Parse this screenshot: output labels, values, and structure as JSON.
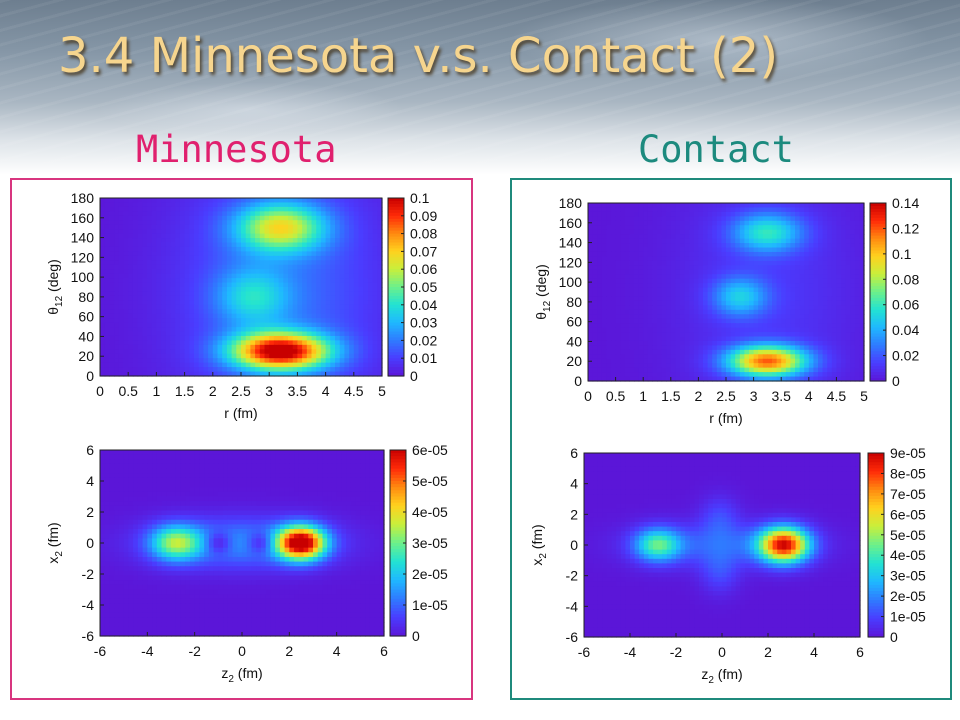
{
  "slide": {
    "title": "3.4 Minnesota v.s. Contact (2)",
    "left_label": "Minnesota",
    "right_label": "Contact"
  },
  "colors": {
    "left_accent": "#e0206e",
    "right_accent": "#1c8a7e",
    "title_color": "#f6d58e",
    "colormap": [
      "#5b16d8",
      "#4a3dff",
      "#2f7bff",
      "#1fb8ff",
      "#22e3d2",
      "#6cf08a",
      "#c8ef3c",
      "#ffd21e",
      "#ff8a10",
      "#ff2a08",
      "#c80000"
    ]
  },
  "chart_data": [
    {
      "type": "heatmap",
      "panel": "Minnesota",
      "xlabel": "r (fm)",
      "ylabel": "θ12 (deg)",
      "xlim": [
        0,
        5
      ],
      "ylim": [
        0,
        180
      ],
      "xticks": [
        "0",
        "0.5",
        "1",
        "1.5",
        "2",
        "2.5",
        "3",
        "3.5",
        "4",
        "4.5",
        "5"
      ],
      "yticks": [
        "0",
        "20",
        "40",
        "60",
        "80",
        "100",
        "120",
        "140",
        "160",
        "180"
      ],
      "colorbar": {
        "min": 0,
        "max": 0.1,
        "ticks": [
          "0",
          "0.01",
          "0.02",
          "0.03",
          "0.04",
          "0.05",
          "0.06",
          "0.07",
          "0.08",
          "0.09",
          "0.1"
        ]
      },
      "features": [
        {
          "x": 3.2,
          "y": 25,
          "sx": 0.6,
          "sy": 13,
          "peak": 0.095
        },
        {
          "x": 3.2,
          "y": 150,
          "sx": 0.55,
          "sy": 17,
          "peak": 0.055
        },
        {
          "x": 2.7,
          "y": 80,
          "sx": 0.45,
          "sy": 20,
          "peak": 0.025
        },
        {
          "x": 3.2,
          "y": 85,
          "sx": 1.3,
          "sy": 100,
          "peak": 0.018
        }
      ]
    },
    {
      "type": "heatmap",
      "panel": "Minnesota",
      "xlabel": "z2 (fm)",
      "ylabel": "x2 (fm)",
      "xlim": [
        -6,
        6
      ],
      "ylim": [
        -6,
        6
      ],
      "xticks": [
        "-6",
        "-4",
        "-2",
        "0",
        "2",
        "4",
        "6"
      ],
      "yticks": [
        "-6",
        "-4",
        "-2",
        "0",
        "2",
        "4",
        "6"
      ],
      "colorbar": {
        "min": 0,
        "max": 6e-05,
        "ticks": [
          "0",
          "1e-05",
          "2e-05",
          "3e-05",
          "4e-05",
          "5e-05",
          "6e-05"
        ]
      },
      "features": [
        {
          "x": 2.5,
          "y": 0,
          "sx": 0.7,
          "sy": 0.75,
          "peak": 6e-05
        },
        {
          "x": -2.8,
          "y": 0,
          "sx": 0.75,
          "sy": 0.8,
          "peak": 2.8e-05
        },
        {
          "x": 0,
          "y": 0,
          "sx": 2.6,
          "sy": 1.1,
          "peak": 1.5e-05
        },
        {
          "x": -1.0,
          "y": 0,
          "sx": 0.4,
          "sy": 0.5,
          "peak": -1.2e-05
        },
        {
          "x": 0.8,
          "y": 0,
          "sx": 0.4,
          "sy": 0.5,
          "peak": -1.2e-05
        }
      ]
    },
    {
      "type": "heatmap",
      "panel": "Contact",
      "xlabel": "r (fm)",
      "ylabel": "θ12 (deg)",
      "xlim": [
        0,
        5
      ],
      "ylim": [
        0,
        180
      ],
      "xticks": [
        "0",
        "0.5",
        "1",
        "1.5",
        "2",
        "2.5",
        "3",
        "3.5",
        "4",
        "4.5",
        "5"
      ],
      "yticks": [
        "0",
        "20",
        "40",
        "60",
        "80",
        "100",
        "120",
        "140",
        "160",
        "180"
      ],
      "colorbar": {
        "min": 0,
        "max": 0.14,
        "ticks": [
          "0",
          "0.02",
          "0.04",
          "0.06",
          "0.08",
          "0.1",
          "0.12",
          "0.14"
        ]
      },
      "features": [
        {
          "x": 3.25,
          "y": 20,
          "sx": 0.5,
          "sy": 11,
          "peak": 0.11
        },
        {
          "x": 3.25,
          "y": 150,
          "sx": 0.45,
          "sy": 14,
          "peak": 0.05
        },
        {
          "x": 2.75,
          "y": 85,
          "sx": 0.35,
          "sy": 14,
          "peak": 0.04
        },
        {
          "x": 3.25,
          "y": 90,
          "sx": 1.2,
          "sy": 100,
          "peak": 0.012
        }
      ]
    },
    {
      "type": "heatmap",
      "panel": "Contact",
      "xlabel": "z2 (fm)",
      "ylabel": "x2 (fm)",
      "xlim": [
        -6,
        6
      ],
      "ylim": [
        -6,
        6
      ],
      "xticks": [
        "-6",
        "-4",
        "-2",
        "0",
        "2",
        "4",
        "6"
      ],
      "yticks": [
        "-6",
        "-4",
        "-2",
        "0",
        "2",
        "4",
        "6"
      ],
      "colorbar": {
        "min": 0,
        "max": 9e-05,
        "ticks": [
          "0",
          "1e-05",
          "2e-05",
          "3e-05",
          "4e-05",
          "5e-05",
          "6e-05",
          "7e-05",
          "8e-05",
          "9e-05"
        ]
      },
      "features": [
        {
          "x": 2.7,
          "y": 0,
          "sx": 0.75,
          "sy": 0.8,
          "peak": 8.2e-05
        },
        {
          "x": -2.8,
          "y": 0,
          "sx": 0.7,
          "sy": 0.75,
          "peak": 3.8e-05
        },
        {
          "x": 0,
          "y": 0,
          "sx": 2.6,
          "sy": 1.0,
          "peak": 1.4e-05
        },
        {
          "x": -0.1,
          "y": 1.8,
          "sx": 0.6,
          "sy": 1.0,
          "peak": 1e-05
        },
        {
          "x": -0.1,
          "y": -1.8,
          "sx": 0.6,
          "sy": 1.0,
          "peak": 1e-05
        }
      ]
    }
  ]
}
